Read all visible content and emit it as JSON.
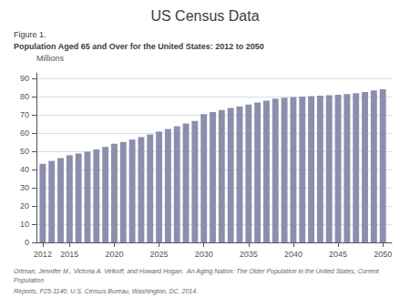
{
  "chart_data": {
    "type": "bar",
    "title": "US Census Data",
    "subtitle": "Population Aged 65 and Over for the United States: 2012 to 2050",
    "annotations": [
      "Figure 1.",
      "Ortman, Jennifer M., Victoria A. Velkoff, and Howard Hogan.  An Aging Nation: The Older Population in the United States, Current Population",
      "Reports, P25-1140. U.S. Census Bureau, Washington, DC. 2014."
    ],
    "ylabel": "Millions",
    "x": [
      2012,
      2013,
      2014,
      2015,
      2016,
      2017,
      2018,
      2019,
      2020,
      2021,
      2022,
      2023,
      2024,
      2025,
      2026,
      2027,
      2028,
      2029,
      2030,
      2031,
      2032,
      2033,
      2034,
      2035,
      2036,
      2037,
      2038,
      2039,
      2040,
      2041,
      2042,
      2043,
      2044,
      2045,
      2046,
      2047,
      2048,
      2049,
      2050
    ],
    "values": [
      43.1,
      44.7,
      46.2,
      47.8,
      48.8,
      49.8,
      51.0,
      52.4,
      54.1,
      55.1,
      56.4,
      57.8,
      59.2,
      60.8,
      62.2,
      63.7,
      65.2,
      66.6,
      70.4,
      71.5,
      72.6,
      73.8,
      74.6,
      75.6,
      76.8,
      77.8,
      78.9,
      79.4,
      79.8,
      80.0,
      80.3,
      80.5,
      80.7,
      81.0,
      81.4,
      81.9,
      82.5,
      83.4,
      84.0
    ],
    "color": "#8b8fad",
    "xlim": [
      2011.3,
      2051.0
    ],
    "xticks": [
      2012,
      2015,
      2020,
      2025,
      2030,
      2035,
      2040,
      2045,
      2050
    ],
    "ylim": [
      0,
      93
    ],
    "yticks": [
      0,
      10,
      20,
      30,
      40,
      50,
      60,
      70,
      80,
      90
    ],
    "grid": true
  }
}
